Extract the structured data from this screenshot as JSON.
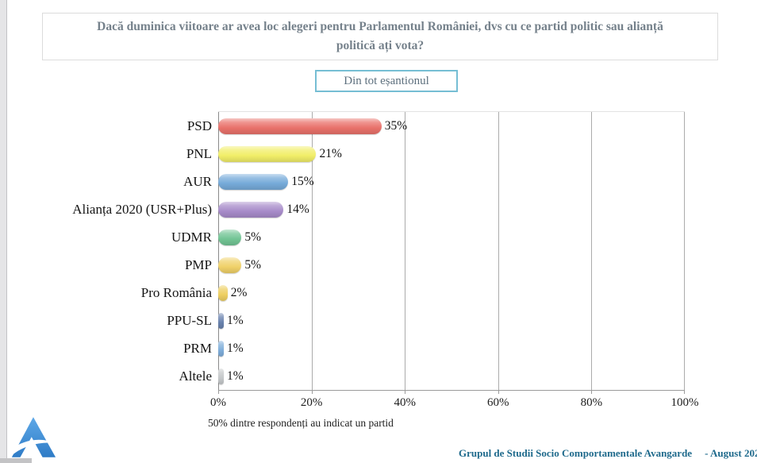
{
  "title": {
    "text": "Dacă duminica viitoare ar avea loc alegeri pentru Parlamentul României, dvs cu ce partid politic sau alianță politică ați vota?"
  },
  "filter_badge": {
    "label": "Din tot eșantionul",
    "border_color": "#76bed4"
  },
  "chart_data": {
    "type": "bar",
    "orientation": "horizontal",
    "categories": [
      "PSD",
      "PNL",
      "AUR",
      "Alianța 2020 (USR+Plus)",
      "UDMR",
      "PMP",
      "Pro România",
      "PPU-SL",
      "PRM",
      "Altele"
    ],
    "values": [
      35,
      21,
      15,
      14,
      5,
      5,
      2,
      1,
      1,
      1
    ],
    "value_labels": [
      "35%",
      "21%",
      "15%",
      "14%",
      "5%",
      "5%",
      "2%",
      "1%",
      "1%",
      "1%"
    ],
    "bar_colors": [
      "#e9726b",
      "#f1ee68",
      "#76aad9",
      "#a78bc9",
      "#72c494",
      "#f0d169",
      "#eecf62",
      "#6982ad",
      "#7fadda",
      "#c5c8ca"
    ],
    "x_ticks": [
      "0%",
      "20%",
      "40%",
      "60%",
      "80%",
      "100%"
    ],
    "xlim": [
      0,
      100
    ],
    "grid": true,
    "legend": false,
    "footnote": "50% dintre respondenți au indicat un partid"
  },
  "footer": {
    "source": "Grupul de Studii Socio Comportamentale Avangarde",
    "date": "-  August 202",
    "source_color": "#1f6a8c",
    "logo": "avangarde-a-logo",
    "logo_color": "#3b87cf"
  }
}
